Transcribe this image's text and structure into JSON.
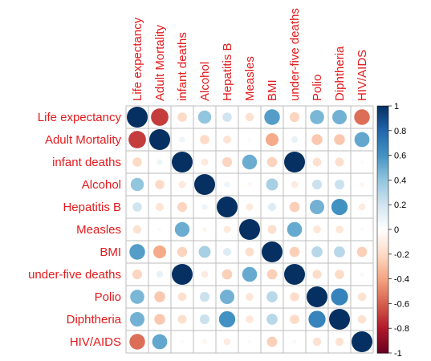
{
  "chart_data": {
    "type": "heatmap",
    "style": "correlation circles",
    "variables": [
      "Life expectancy",
      "Adult Mortality",
      "infant deaths",
      "Alcohol",
      "Hepatitis B",
      "Measles",
      "BMI",
      "under-five deaths",
      "Polio",
      "Diphtheria",
      "HIV/AIDS"
    ],
    "matrix": [
      [
        1.0,
        -0.7,
        -0.2,
        0.4,
        0.2,
        -0.16,
        0.56,
        -0.22,
        0.46,
        0.48,
        -0.56
      ],
      [
        -0.7,
        1.0,
        0.08,
        -0.2,
        -0.15,
        0.03,
        -0.38,
        0.1,
        -0.27,
        -0.27,
        0.52
      ],
      [
        -0.2,
        0.08,
        1.0,
        -0.12,
        -0.22,
        0.5,
        -0.23,
        1.0,
        -0.17,
        -0.18,
        0.03
      ],
      [
        0.4,
        -0.2,
        -0.12,
        1.0,
        0.08,
        -0.05,
        0.33,
        -0.11,
        0.22,
        0.22,
        -0.05
      ],
      [
        0.2,
        -0.15,
        -0.22,
        0.08,
        1.0,
        -0.12,
        0.15,
        -0.24,
        0.48,
        0.61,
        -0.11
      ],
      [
        -0.16,
        0.03,
        0.5,
        -0.05,
        -0.12,
        1.0,
        -0.18,
        0.51,
        -0.14,
        -0.14,
        0.03
      ],
      [
        0.56,
        -0.38,
        -0.23,
        0.33,
        0.15,
        -0.18,
        1.0,
        -0.24,
        0.28,
        0.28,
        -0.24
      ],
      [
        -0.22,
        0.1,
        1.0,
        -0.11,
        -0.24,
        0.51,
        -0.24,
        1.0,
        -0.19,
        -0.2,
        0.04
      ],
      [
        0.46,
        -0.27,
        -0.17,
        0.22,
        0.48,
        -0.14,
        0.28,
        -0.19,
        1.0,
        0.67,
        -0.16
      ],
      [
        0.48,
        -0.27,
        -0.18,
        0.22,
        0.61,
        -0.14,
        0.28,
        -0.2,
        0.67,
        1.0,
        -0.16
      ],
      [
        -0.56,
        0.52,
        0.03,
        -0.05,
        -0.11,
        0.03,
        -0.24,
        0.04,
        -0.16,
        -0.16,
        1.0
      ]
    ],
    "colorbar": {
      "ticks": [
        "1",
        "0.8",
        "0.6",
        "0.4",
        "0.2",
        "0",
        "-0.2",
        "-0.4",
        "-0.6",
        "-0.8",
        "-1"
      ],
      "range": [
        -1,
        1
      ],
      "colors": {
        "neg1": "#67001F",
        "neg08": "#B2182B",
        "neg06": "#D6604D",
        "neg04": "#F4A582",
        "neg02": "#FDDBC7",
        "zero": "#FFFFFF",
        "pos02": "#D1E5F0",
        "pos04": "#92C5DE",
        "pos06": "#4393C3",
        "pos08": "#2166AC",
        "pos1": "#053061"
      }
    },
    "label_color": "#E41A1C",
    "grid_color": "#BEBEBE",
    "grid": true
  }
}
